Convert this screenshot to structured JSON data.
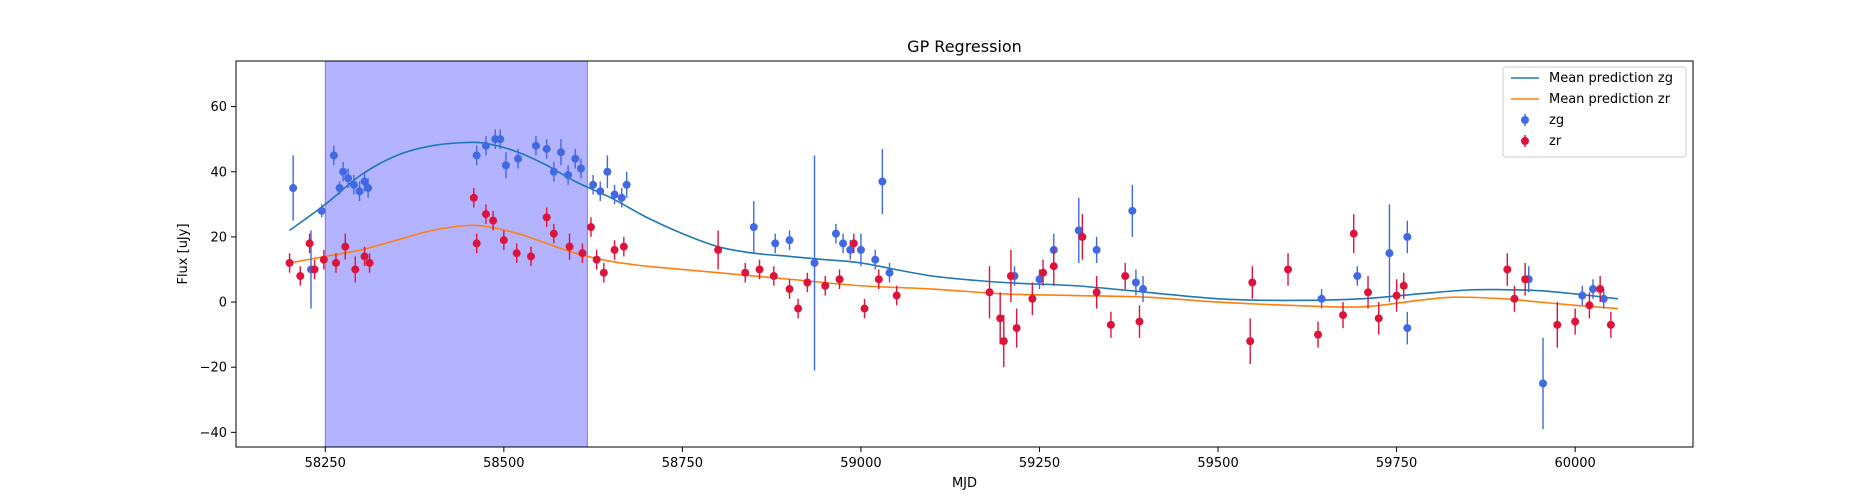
{
  "chart_data": {
    "type": "scatter",
    "title": "GP Regression",
    "xlabel": "MJD",
    "ylabel": "Flux [uJy]",
    "xlim": [
      58125,
      60165
    ],
    "ylim": [
      -44.5,
      74
    ],
    "xticks": [
      58250,
      58500,
      58750,
      59000,
      59250,
      59500,
      59750,
      60000
    ],
    "yticks": [
      -40,
      -20,
      0,
      20,
      40,
      60
    ],
    "grid": false,
    "legend_position": "top-right",
    "highlight_span": {
      "x0": 58250,
      "x1": 58617,
      "color": "#a6a6ff"
    },
    "series": [
      {
        "name": "Mean prediction zg",
        "kind": "line",
        "color": "#1f77b4",
        "x": [
          58200,
          58250,
          58300,
          58350,
          58400,
          58450,
          58480,
          58520,
          58560,
          58600,
          58650,
          58700,
          58750,
          58800,
          58850,
          58900,
          58950,
          59000,
          59100,
          59200,
          59300,
          59400,
          59500,
          59600,
          59700,
          59780,
          59850,
          59900,
          59950,
          60000,
          60060
        ],
        "y": [
          22,
          30,
          39,
          45,
          48,
          49,
          48.5,
          46,
          42,
          37,
          32,
          26,
          21,
          17,
          15,
          14,
          13,
          12,
          8,
          6,
          5,
          3,
          1,
          0.5,
          1,
          2.5,
          3.7,
          3.8,
          3.5,
          2.5,
          1
        ]
      },
      {
        "name": "Mean prediction zr",
        "kind": "line",
        "color": "#ff7f0e",
        "x": [
          58200,
          58250,
          58300,
          58350,
          58400,
          58450,
          58480,
          58520,
          58560,
          58600,
          58650,
          58700,
          58750,
          58800,
          58900,
          59000,
          59100,
          59200,
          59300,
          59400,
          59500,
          59600,
          59700,
          59780,
          59830,
          59900,
          59950,
          60000,
          60060
        ],
        "y": [
          12,
          14,
          16,
          19,
          22,
          23.5,
          23,
          21,
          18,
          15,
          12.5,
          11,
          10,
          9,
          7,
          5,
          4,
          2.5,
          2,
          1.5,
          0,
          -1,
          -1.5,
          0.5,
          1.5,
          1,
          0,
          -1,
          -2
        ]
      },
      {
        "name": "zg",
        "kind": "errorbar",
        "color": "#4169e1",
        "x": [
          58205,
          58230,
          58245,
          58262,
          58270,
          58275,
          58282,
          58290,
          58298,
          58305,
          58310,
          58462,
          58475,
          58488,
          58495,
          58503,
          58520,
          58545,
          58560,
          58570,
          58580,
          58590,
          58600,
          58608,
          58625,
          58635,
          58645,
          58655,
          58665,
          58672,
          58850,
          58880,
          58900,
          58935,
          58965,
          58975,
          58985,
          59000,
          59020,
          59030,
          59040,
          59215,
          59250,
          59270,
          59305,
          59330,
          59380,
          59385,
          59395,
          59645,
          59695,
          59740,
          59765,
          59765,
          59935,
          59955,
          60010,
          60025,
          60040
        ],
        "y": [
          35,
          10,
          28,
          45,
          35,
          40,
          38,
          36,
          34,
          37,
          35,
          45,
          48,
          50,
          50,
          42,
          44,
          48,
          47,
          40,
          46,
          39,
          44,
          41,
          36,
          34,
          40,
          33,
          32,
          36,
          23,
          18,
          19,
          12,
          21,
          18,
          16,
          16,
          13,
          37,
          9,
          8,
          7,
          16,
          22,
          16,
          28,
          6,
          4,
          1,
          8,
          15,
          20,
          -8,
          7,
          -25,
          2,
          4,
          1
        ],
        "yerr": [
          10,
          12,
          2,
          3,
          2,
          3,
          3,
          3,
          3,
          3,
          3,
          3,
          3,
          3,
          3,
          4,
          3,
          3,
          3,
          3,
          4,
          3,
          3,
          3,
          3,
          3,
          5,
          3,
          3,
          4,
          8,
          3,
          3,
          33,
          3,
          3,
          3,
          5,
          3,
          10,
          3,
          3,
          3,
          5,
          10,
          4,
          8,
          4,
          4,
          3,
          3,
          15,
          5,
          5,
          4,
          14,
          3,
          3,
          3
        ]
      },
      {
        "name": "zr",
        "kind": "errorbar",
        "color": "#dc143c",
        "x": [
          58200,
          58215,
          58228,
          58235,
          58248,
          58265,
          58278,
          58292,
          58305,
          58312,
          58458,
          58462,
          58475,
          58485,
          58500,
          58518,
          58538,
          58560,
          58570,
          58592,
          58610,
          58622,
          58630,
          58640,
          58655,
          58668,
          58800,
          58838,
          58858,
          58878,
          58900,
          58912,
          58925,
          58950,
          58970,
          58990,
          59005,
          59025,
          59050,
          59180,
          59195,
          59200,
          59210,
          59218,
          59240,
          59255,
          59270,
          59310,
          59330,
          59350,
          59370,
          59390,
          59545,
          59548,
          59598,
          59640,
          59675,
          59690,
          59710,
          59725,
          59750,
          59760,
          59905,
          59915,
          59930,
          59975,
          60000,
          60020,
          60035,
          60050
        ],
        "y": [
          12,
          8,
          18,
          10,
          13,
          12,
          17,
          10,
          14,
          12,
          32,
          18,
          27,
          25,
          19,
          15,
          14,
          26,
          21,
          17,
          15,
          23,
          13,
          9,
          16,
          17,
          16,
          9,
          10,
          8,
          4,
          -2,
          6,
          5,
          7,
          18,
          -2,
          7,
          2,
          3,
          -5,
          -12,
          8,
          -8,
          1,
          9,
          11,
          20,
          3,
          -7,
          8,
          -6,
          -12,
          6,
          10,
          -10,
          -4,
          21,
          3,
          -5,
          2,
          5,
          10,
          1,
          7,
          -7,
          -6,
          -1,
          4,
          -7
        ],
        "yerr": [
          3,
          3,
          3,
          3,
          3,
          3,
          4,
          4,
          3,
          3,
          3,
          3,
          3,
          3,
          3,
          3,
          3,
          3,
          3,
          4,
          3,
          3,
          3,
          3,
          3,
          3,
          6,
          3,
          3,
          3,
          3,
          3,
          3,
          3,
          3,
          3,
          3,
          3,
          3,
          8,
          8,
          8,
          8,
          6,
          5,
          4,
          6,
          7,
          5,
          4,
          4,
          5,
          7,
          5,
          5,
          4,
          4,
          6,
          5,
          5,
          5,
          4,
          5,
          4,
          5,
          7,
          4,
          4,
          4,
          4
        ]
      }
    ]
  }
}
